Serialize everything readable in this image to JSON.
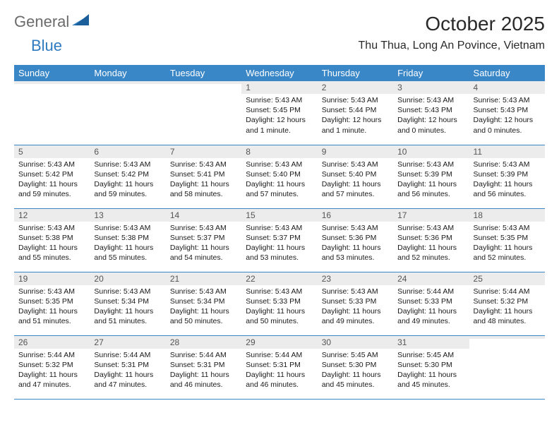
{
  "logo": {
    "general": "General",
    "blue": "Blue"
  },
  "title": "October 2025",
  "location": "Thu Thua, Long An Povince, Vietnam",
  "weekdays": [
    "Sunday",
    "Monday",
    "Tuesday",
    "Wednesday",
    "Thursday",
    "Friday",
    "Saturday"
  ],
  "colors": {
    "header_bg": "#3a87c8",
    "header_fg": "#ffffff",
    "daynum_bg": "#ececec",
    "rule": "#3a87c8",
    "logo_gray": "#6b6b6b",
    "logo_blue": "#2f7bbf"
  },
  "weeks": [
    [
      {
        "n": "",
        "lines": [
          "",
          "",
          "",
          ""
        ]
      },
      {
        "n": "",
        "lines": [
          "",
          "",
          "",
          ""
        ]
      },
      {
        "n": "",
        "lines": [
          "",
          "",
          "",
          ""
        ]
      },
      {
        "n": "1",
        "lines": [
          "Sunrise: 5:43 AM",
          "Sunset: 5:45 PM",
          "Daylight: 12 hours",
          "and 1 minute."
        ]
      },
      {
        "n": "2",
        "lines": [
          "Sunrise: 5:43 AM",
          "Sunset: 5:44 PM",
          "Daylight: 12 hours",
          "and 1 minute."
        ]
      },
      {
        "n": "3",
        "lines": [
          "Sunrise: 5:43 AM",
          "Sunset: 5:43 PM",
          "Daylight: 12 hours",
          "and 0 minutes."
        ]
      },
      {
        "n": "4",
        "lines": [
          "Sunrise: 5:43 AM",
          "Sunset: 5:43 PM",
          "Daylight: 12 hours",
          "and 0 minutes."
        ]
      }
    ],
    [
      {
        "n": "5",
        "lines": [
          "Sunrise: 5:43 AM",
          "Sunset: 5:42 PM",
          "Daylight: 11 hours",
          "and 59 minutes."
        ]
      },
      {
        "n": "6",
        "lines": [
          "Sunrise: 5:43 AM",
          "Sunset: 5:42 PM",
          "Daylight: 11 hours",
          "and 59 minutes."
        ]
      },
      {
        "n": "7",
        "lines": [
          "Sunrise: 5:43 AM",
          "Sunset: 5:41 PM",
          "Daylight: 11 hours",
          "and 58 minutes."
        ]
      },
      {
        "n": "8",
        "lines": [
          "Sunrise: 5:43 AM",
          "Sunset: 5:40 PM",
          "Daylight: 11 hours",
          "and 57 minutes."
        ]
      },
      {
        "n": "9",
        "lines": [
          "Sunrise: 5:43 AM",
          "Sunset: 5:40 PM",
          "Daylight: 11 hours",
          "and 57 minutes."
        ]
      },
      {
        "n": "10",
        "lines": [
          "Sunrise: 5:43 AM",
          "Sunset: 5:39 PM",
          "Daylight: 11 hours",
          "and 56 minutes."
        ]
      },
      {
        "n": "11",
        "lines": [
          "Sunrise: 5:43 AM",
          "Sunset: 5:39 PM",
          "Daylight: 11 hours",
          "and 56 minutes."
        ]
      }
    ],
    [
      {
        "n": "12",
        "lines": [
          "Sunrise: 5:43 AM",
          "Sunset: 5:38 PM",
          "Daylight: 11 hours",
          "and 55 minutes."
        ]
      },
      {
        "n": "13",
        "lines": [
          "Sunrise: 5:43 AM",
          "Sunset: 5:38 PM",
          "Daylight: 11 hours",
          "and 55 minutes."
        ]
      },
      {
        "n": "14",
        "lines": [
          "Sunrise: 5:43 AM",
          "Sunset: 5:37 PM",
          "Daylight: 11 hours",
          "and 54 minutes."
        ]
      },
      {
        "n": "15",
        "lines": [
          "Sunrise: 5:43 AM",
          "Sunset: 5:37 PM",
          "Daylight: 11 hours",
          "and 53 minutes."
        ]
      },
      {
        "n": "16",
        "lines": [
          "Sunrise: 5:43 AM",
          "Sunset: 5:36 PM",
          "Daylight: 11 hours",
          "and 53 minutes."
        ]
      },
      {
        "n": "17",
        "lines": [
          "Sunrise: 5:43 AM",
          "Sunset: 5:36 PM",
          "Daylight: 11 hours",
          "and 52 minutes."
        ]
      },
      {
        "n": "18",
        "lines": [
          "Sunrise: 5:43 AM",
          "Sunset: 5:35 PM",
          "Daylight: 11 hours",
          "and 52 minutes."
        ]
      }
    ],
    [
      {
        "n": "19",
        "lines": [
          "Sunrise: 5:43 AM",
          "Sunset: 5:35 PM",
          "Daylight: 11 hours",
          "and 51 minutes."
        ]
      },
      {
        "n": "20",
        "lines": [
          "Sunrise: 5:43 AM",
          "Sunset: 5:34 PM",
          "Daylight: 11 hours",
          "and 51 minutes."
        ]
      },
      {
        "n": "21",
        "lines": [
          "Sunrise: 5:43 AM",
          "Sunset: 5:34 PM",
          "Daylight: 11 hours",
          "and 50 minutes."
        ]
      },
      {
        "n": "22",
        "lines": [
          "Sunrise: 5:43 AM",
          "Sunset: 5:33 PM",
          "Daylight: 11 hours",
          "and 50 minutes."
        ]
      },
      {
        "n": "23",
        "lines": [
          "Sunrise: 5:43 AM",
          "Sunset: 5:33 PM",
          "Daylight: 11 hours",
          "and 49 minutes."
        ]
      },
      {
        "n": "24",
        "lines": [
          "Sunrise: 5:44 AM",
          "Sunset: 5:33 PM",
          "Daylight: 11 hours",
          "and 49 minutes."
        ]
      },
      {
        "n": "25",
        "lines": [
          "Sunrise: 5:44 AM",
          "Sunset: 5:32 PM",
          "Daylight: 11 hours",
          "and 48 minutes."
        ]
      }
    ],
    [
      {
        "n": "26",
        "lines": [
          "Sunrise: 5:44 AM",
          "Sunset: 5:32 PM",
          "Daylight: 11 hours",
          "and 47 minutes."
        ]
      },
      {
        "n": "27",
        "lines": [
          "Sunrise: 5:44 AM",
          "Sunset: 5:31 PM",
          "Daylight: 11 hours",
          "and 47 minutes."
        ]
      },
      {
        "n": "28",
        "lines": [
          "Sunrise: 5:44 AM",
          "Sunset: 5:31 PM",
          "Daylight: 11 hours",
          "and 46 minutes."
        ]
      },
      {
        "n": "29",
        "lines": [
          "Sunrise: 5:44 AM",
          "Sunset: 5:31 PM",
          "Daylight: 11 hours",
          "and 46 minutes."
        ]
      },
      {
        "n": "30",
        "lines": [
          "Sunrise: 5:45 AM",
          "Sunset: 5:30 PM",
          "Daylight: 11 hours",
          "and 45 minutes."
        ]
      },
      {
        "n": "31",
        "lines": [
          "Sunrise: 5:45 AM",
          "Sunset: 5:30 PM",
          "Daylight: 11 hours",
          "and 45 minutes."
        ]
      },
      {
        "n": "",
        "lines": [
          "",
          "",
          "",
          ""
        ]
      }
    ]
  ]
}
